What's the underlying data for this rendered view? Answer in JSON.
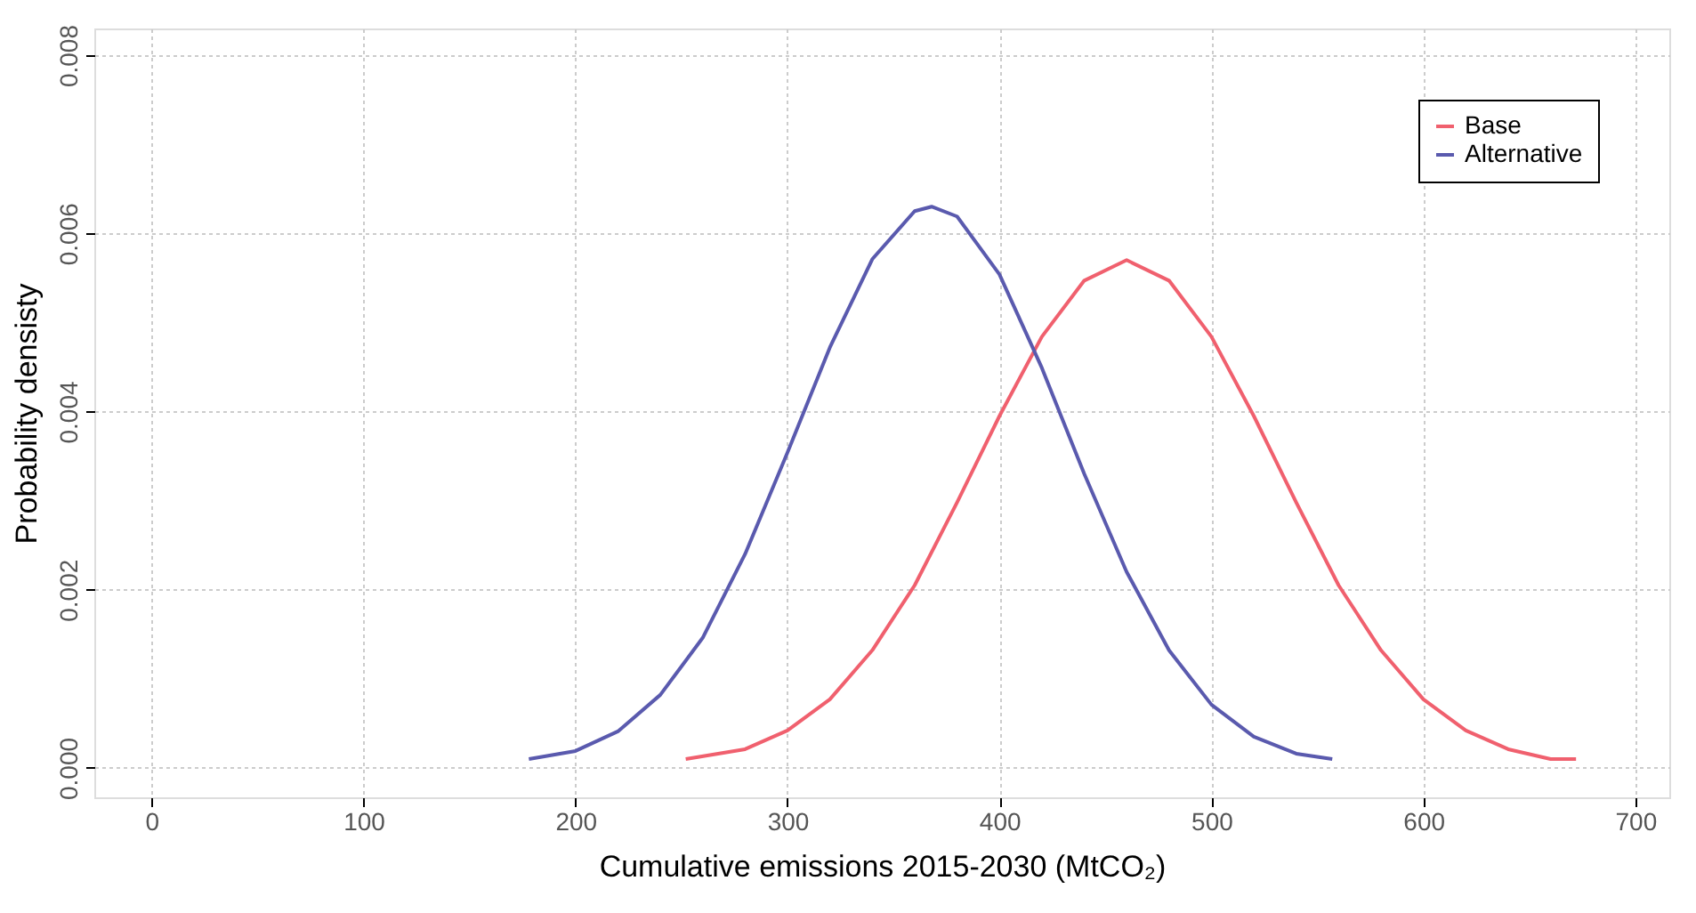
{
  "chart_data": {
    "type": "line",
    "xlabel": "Cumulative emissions 2015-2030 (MtCO₂)",
    "ylabel": "Probability densisty",
    "xlim": [
      -27,
      716
    ],
    "ylim": [
      -0.00033,
      0.0083
    ],
    "xticks": [
      0,
      100,
      200,
      300,
      400,
      500,
      600,
      700
    ],
    "yticks": [
      {
        "value": 0,
        "label": "0.000"
      },
      {
        "value": 0.002,
        "label": "0.002"
      },
      {
        "value": 0.004,
        "label": "0.004"
      },
      {
        "value": 0.006,
        "label": "0.006"
      },
      {
        "value": 0.008,
        "label": "0.008"
      }
    ],
    "grid": true,
    "legend": "top right",
    "marker": "none",
    "line_style": "solid",
    "series": [
      {
        "name": "Base",
        "color": "#f0606e",
        "x": [
          252,
          280,
          300,
          320,
          340,
          360,
          380,
          400,
          420,
          440,
          460,
          480,
          500,
          520,
          540,
          560,
          580,
          600,
          620,
          640,
          660,
          672
        ],
        "values": [
          0.0001,
          0.00021,
          0.00042,
          0.00077,
          0.00132,
          0.00205,
          0.00298,
          0.00395,
          0.00484,
          0.00547,
          0.0057,
          0.00547,
          0.00484,
          0.00395,
          0.00298,
          0.00205,
          0.00132,
          0.00077,
          0.00042,
          0.00021,
          0.0001,
          0.0001
        ]
      },
      {
        "name": "Alternative",
        "color": "#5a5aae",
        "x": [
          178,
          200,
          220,
          240,
          260,
          280,
          300,
          320,
          340,
          360,
          368,
          380,
          400,
          420,
          440,
          460,
          480,
          500,
          520,
          540,
          557
        ],
        "values": [
          0.0001,
          0.00019,
          0.00041,
          0.00082,
          0.00146,
          0.0024,
          0.00354,
          0.00472,
          0.00571,
          0.00625,
          0.0063,
          0.00619,
          0.00554,
          0.00449,
          0.0033,
          0.0022,
          0.00132,
          0.00071,
          0.00035,
          0.00016,
          0.0001
        ]
      }
    ]
  }
}
